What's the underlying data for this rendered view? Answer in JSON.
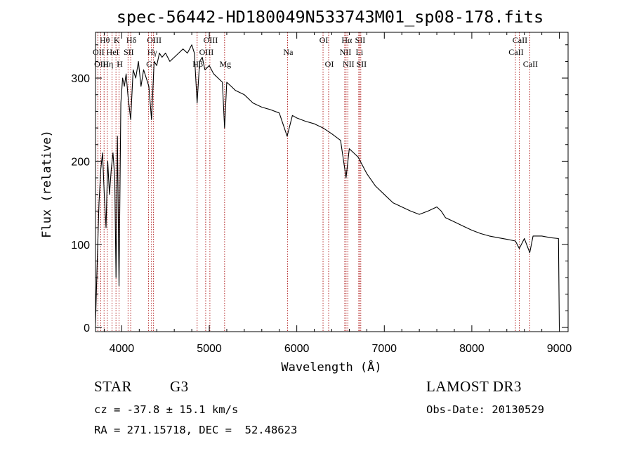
{
  "chart_data": {
    "type": "line",
    "title": "spec-56442-HD180049N533743M01_sp08-178.fits",
    "xlabel": "Wavelength (Å)",
    "ylabel": "Flux (relative)",
    "xlim": [
      3700,
      9100
    ],
    "ylim": [
      -5,
      355
    ],
    "xticks": [
      4000,
      5000,
      6000,
      7000,
      8000,
      9000
    ],
    "yticks": [
      0,
      100,
      200,
      300
    ],
    "grid": false,
    "series": [
      {
        "name": "spectrum",
        "x": [
          3700,
          3720,
          3740,
          3760,
          3780,
          3800,
          3820,
          3840,
          3860,
          3880,
          3900,
          3920,
          3934,
          3950,
          3969,
          3990,
          4010,
          4030,
          4050,
          4070,
          4102,
          4130,
          4160,
          4190,
          4220,
          4250,
          4280,
          4310,
          4340,
          4370,
          4400,
          4430,
          4460,
          4500,
          4550,
          4600,
          4650,
          4700,
          4750,
          4800,
          4830,
          4861,
          4890,
          4920,
          4950,
          5000,
          5050,
          5100,
          5150,
          5175,
          5200,
          5250,
          5300,
          5400,
          5500,
          5600,
          5700,
          5800,
          5890,
          5950,
          6000,
          6100,
          6200,
          6300,
          6400,
          6500,
          6563,
          6600,
          6650,
          6700,
          6750,
          6800,
          6900,
          7000,
          7100,
          7200,
          7300,
          7400,
          7500,
          7600,
          7650,
          7700,
          7800,
          7900,
          8000,
          8100,
          8200,
          8300,
          8400,
          8498,
          8542,
          8600,
          8662,
          8700,
          8800,
          8900,
          8990,
          9000
        ],
        "values": [
          5,
          80,
          150,
          190,
          210,
          160,
          120,
          200,
          160,
          190,
          210,
          180,
          60,
          230,
          50,
          270,
          300,
          290,
          305,
          280,
          250,
          310,
          300,
          320,
          290,
          310,
          300,
          290,
          250,
          320,
          315,
          330,
          325,
          330,
          320,
          325,
          330,
          335,
          330,
          340,
          330,
          270,
          320,
          325,
          310,
          315,
          305,
          300,
          295,
          240,
          295,
          290,
          285,
          280,
          270,
          265,
          262,
          258,
          230,
          255,
          252,
          248,
          245,
          240,
          233,
          225,
          180,
          215,
          210,
          205,
          195,
          185,
          170,
          160,
          150,
          145,
          140,
          136,
          140,
          145,
          140,
          132,
          127,
          122,
          117,
          113,
          110,
          108,
          106,
          104,
          95,
          107,
          90,
          110,
          110,
          108,
          107,
          0
        ]
      }
    ],
    "lines": [
      {
        "name": "Hθ",
        "wave": 3798,
        "row": 1
      },
      {
        "name": "OII",
        "wave": 3727,
        "row": 2
      },
      {
        "name": "OIII",
        "wave": 3760,
        "row": 3
      },
      {
        "name": "K",
        "wave": 3934,
        "row": 1
      },
      {
        "name": "HeI",
        "wave": 3889,
        "row": 2
      },
      {
        "name": "Hη",
        "wave": 3835,
        "row": 3
      },
      {
        "name": "Hδ",
        "wave": 4102,
        "row": 1
      },
      {
        "name": "SII",
        "wave": 4072,
        "row": 2
      },
      {
        "name": "H",
        "wave": 3969,
        "row": 3
      },
      {
        "name": "OIII",
        "wave": 4363,
        "row": 1
      },
      {
        "name": "Hγ",
        "wave": 4340,
        "row": 2
      },
      {
        "name": "G",
        "wave": 4305,
        "row": 3
      },
      {
        "name": "OIII",
        "wave": 5007,
        "row": 1
      },
      {
        "name": "OIII",
        "wave": 4959,
        "row": 2
      },
      {
        "name": "Hβ",
        "wave": 4861,
        "row": 3
      },
      {
        "name": "Mg",
        "wave": 5175,
        "row": 3
      },
      {
        "name": "Na",
        "wave": 5894,
        "row": 2
      },
      {
        "name": "OI",
        "wave": 6300,
        "row": 1
      },
      {
        "name": "OI",
        "wave": 6364,
        "row": 3
      },
      {
        "name": "Hα",
        "wave": 6563,
        "row": 1
      },
      {
        "name": "SII",
        "wave": 6716,
        "row": 1
      },
      {
        "name": "NII",
        "wave": 6548,
        "row": 2
      },
      {
        "name": "Li",
        "wave": 6708,
        "row": 2
      },
      {
        "name": "NII",
        "wave": 6583,
        "row": 3
      },
      {
        "name": "SII",
        "wave": 6731,
        "row": 3
      },
      {
        "name": "CaII",
        "wave": 8542,
        "row": 1
      },
      {
        "name": "CaII",
        "wave": 8498,
        "row": 2
      },
      {
        "name": "CaII",
        "wave": 8662,
        "row": 3
      }
    ],
    "colors": {
      "spectrum": "#000000",
      "line_markers": "#b22222"
    }
  },
  "info": {
    "class": "STAR",
    "subclass": "G3",
    "survey": "LAMOST DR3",
    "cz": "cz = -37.8 ± 15.1 km/s",
    "obs_date": "Obs-Date: 20130529",
    "coords": "RA = 271.15718, DEC =  52.48623"
  }
}
